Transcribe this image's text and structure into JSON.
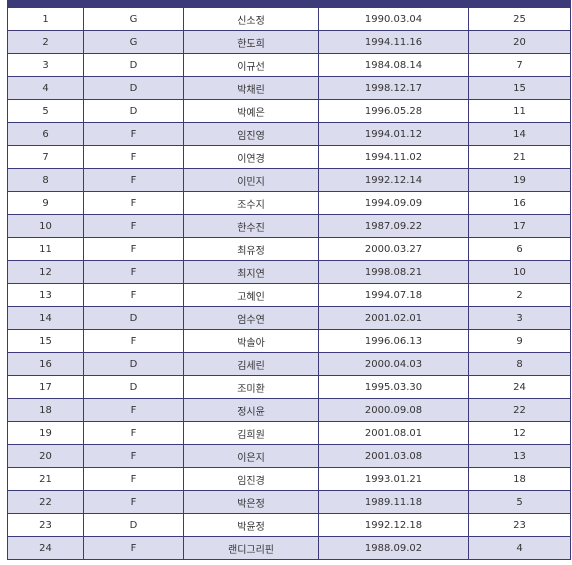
{
  "table": {
    "columns": [
      "",
      "",
      "",
      "",
      ""
    ],
    "rows": [
      [
        "1",
        "G",
        "신소정",
        "1990.03.04",
        "25"
      ],
      [
        "2",
        "G",
        "한도희",
        "1994.11.16",
        "20"
      ],
      [
        "3",
        "D",
        "이규선",
        "1984.08.14",
        "7"
      ],
      [
        "4",
        "D",
        "박채린",
        "1998.12.17",
        "15"
      ],
      [
        "5",
        "D",
        "박예은",
        "1996.05.28",
        "11"
      ],
      [
        "6",
        "F",
        "임진영",
        "1994.01.12",
        "14"
      ],
      [
        "7",
        "F",
        "이연경",
        "1994.11.02",
        "21"
      ],
      [
        "8",
        "F",
        "이민지",
        "1992.12.14",
        "19"
      ],
      [
        "9",
        "F",
        "조수지",
        "1994.09.09",
        "16"
      ],
      [
        "10",
        "F",
        "한수진",
        "1987.09.22",
        "17"
      ],
      [
        "11",
        "F",
        "최유정",
        "2000.03.27",
        "6"
      ],
      [
        "12",
        "F",
        "최지연",
        "1998.08.21",
        "10"
      ],
      [
        "13",
        "F",
        "고혜인",
        "1994.07.18",
        "2"
      ],
      [
        "14",
        "D",
        "엄수연",
        "2001.02.01",
        "3"
      ],
      [
        "15",
        "F",
        "박솔아",
        "1996.06.13",
        "9"
      ],
      [
        "16",
        "D",
        "김세린",
        "2000.04.03",
        "8"
      ],
      [
        "17",
        "D",
        "조미환",
        "1995.03.30",
        "24"
      ],
      [
        "18",
        "F",
        "정시윤",
        "2000.09.08",
        "22"
      ],
      [
        "19",
        "F",
        "김희원",
        "2001.08.01",
        "12"
      ],
      [
        "20",
        "F",
        "이은지",
        "2001.03.08",
        "13"
      ],
      [
        "21",
        "F",
        "임진경",
        "1993.01.21",
        "18"
      ],
      [
        "22",
        "F",
        "박은정",
        "1989.11.18",
        "5"
      ],
      [
        "23",
        "D",
        "박윤정",
        "1992.12.18",
        "23"
      ],
      [
        "24",
        "F",
        "랜디그리핀",
        "1988.09.02",
        "4"
      ]
    ]
  },
  "colors": {
    "header": "#3c3a78",
    "border": "#3c3a78",
    "stripe": "#dcdcef"
  }
}
